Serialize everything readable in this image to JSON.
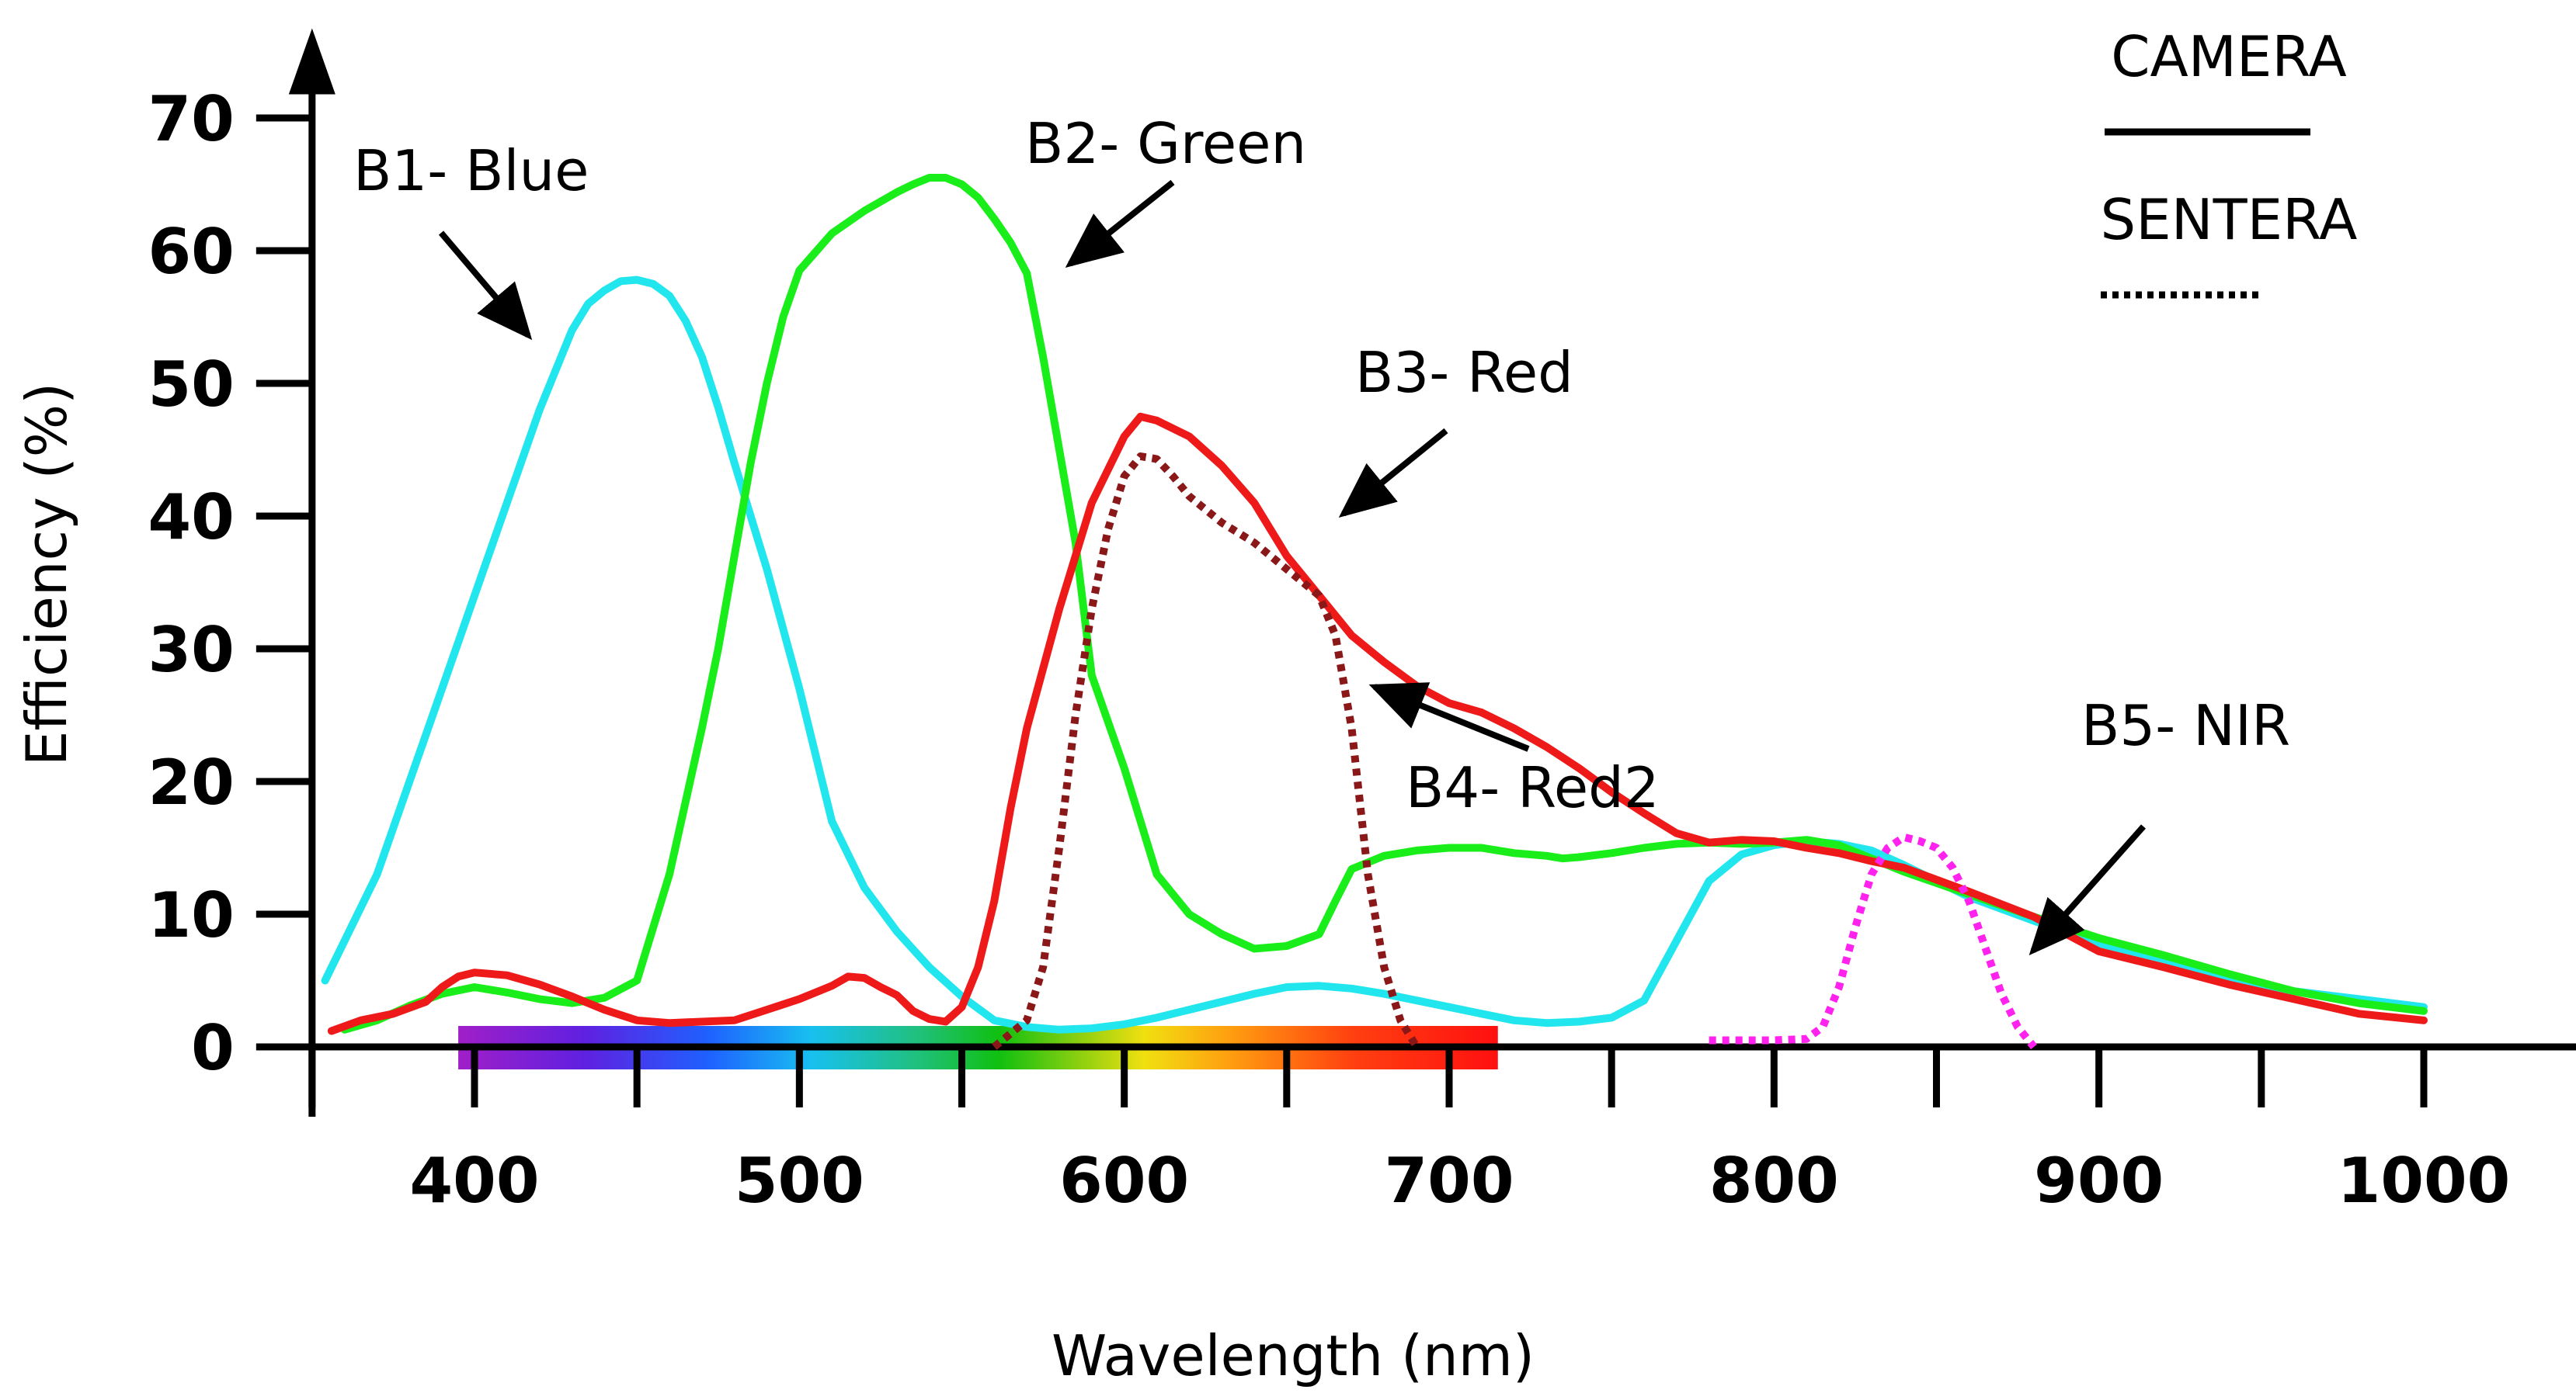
{
  "chart_data": {
    "type": "line",
    "title": "",
    "xlabel": "Wavelength (nm)",
    "ylabel": "Efficiency (%)",
    "xlim": [
      350,
      1030
    ],
    "ylim": [
      0,
      75
    ],
    "grid": false,
    "x_ticks": [
      400,
      500,
      600,
      700,
      800,
      900,
      1000
    ],
    "x_minor_ticks": [
      350,
      450,
      550,
      650,
      750,
      850,
      950
    ],
    "y_ticks": [
      0,
      10,
      20,
      30,
      40,
      50,
      60,
      70
    ],
    "spectrum_range": [
      395,
      715
    ],
    "legend": {
      "position": "top-right",
      "entries": [
        {
          "label": "CAMERA",
          "style": "solid"
        },
        {
          "label": "SENTERA",
          "style": "dotted"
        }
      ]
    },
    "series": [
      {
        "name": "B1- Blue",
        "color": "#22e6ee",
        "style": "solid",
        "x": [
          354,
          360,
          370,
          380,
          390,
          400,
          410,
          420,
          425,
          430,
          435,
          440,
          445,
          450,
          455,
          460,
          465,
          470,
          475,
          480,
          490,
          500,
          510,
          520,
          530,
          540,
          550,
          560,
          570,
          580,
          590,
          600,
          610,
          620,
          630,
          640,
          650,
          660,
          670,
          680,
          690,
          700,
          710,
          720,
          730,
          740,
          750,
          760,
          770,
          780,
          790,
          800,
          810,
          820,
          830,
          840,
          860,
          880,
          900,
          920,
          940,
          960,
          980,
          1000
        ],
        "y": [
          5,
          8,
          13,
          20,
          27,
          34,
          41,
          48,
          51,
          54,
          56,
          57,
          57.7,
          57.8,
          57.5,
          56.6,
          54.7,
          52,
          48.2,
          44,
          36,
          27,
          17,
          12,
          8.7,
          6,
          3.8,
          2,
          1.5,
          1.3,
          1.4,
          1.7,
          2.2,
          2.8,
          3.4,
          4,
          4.5,
          4.6,
          4.4,
          4.0,
          3.5,
          3.0,
          2.5,
          2.0,
          1.8,
          1.9,
          2.2,
          3.5,
          8,
          12.5,
          14.5,
          15.2,
          15.5,
          15.3,
          14.8,
          13.7,
          11.3,
          9.5,
          7.8,
          6.6,
          5.2,
          4.2,
          3.6,
          3.0
        ]
      },
      {
        "name": "B2- Green",
        "color": "#1aee1a",
        "style": "solid",
        "x": [
          360,
          370,
          380,
          390,
          400,
          410,
          420,
          430,
          440,
          450,
          460,
          470,
          475,
          480,
          485,
          490,
          495,
          500,
          510,
          520,
          530,
          535,
          540,
          545,
          550,
          555,
          560,
          565,
          570,
          575,
          580,
          585,
          590,
          600,
          610,
          620,
          630,
          640,
          650,
          660,
          665,
          670,
          680,
          690,
          700,
          710,
          720,
          730,
          735,
          740,
          750,
          760,
          770,
          780,
          790,
          800,
          810,
          820,
          830,
          840,
          860,
          880,
          900,
          920,
          940,
          960,
          980,
          1000
        ],
        "y": [
          1.3,
          2,
          3.1,
          4,
          4.5,
          4.1,
          3.6,
          3.3,
          3.7,
          5,
          13,
          24,
          30,
          37,
          44,
          50,
          55,
          58.5,
          61.3,
          63,
          64.4,
          65,
          65.5,
          65.5,
          65,
          64,
          62.4,
          60.6,
          58.3,
          52,
          45,
          38,
          28,
          21,
          13,
          10,
          8.5,
          7.4,
          7.6,
          8.5,
          11,
          13.4,
          14.4,
          14.8,
          15,
          15,
          14.6,
          14.4,
          14.2,
          14.3,
          14.6,
          15.0,
          15.3,
          15.4,
          15.3,
          15.4,
          15.6,
          15.2,
          14.2,
          13.2,
          11.5,
          9.8,
          8.2,
          6.9,
          5.5,
          4.2,
          3.3,
          2.7
        ]
      },
      {
        "name": "B3- Red",
        "color": "#ee1a1a",
        "style": "solid",
        "x": [
          356,
          365,
          375,
          385,
          390,
          395,
          400,
          410,
          420,
          430,
          440,
          450,
          460,
          470,
          480,
          490,
          500,
          510,
          515,
          520,
          525,
          530,
          535,
          540,
          545,
          550,
          555,
          560,
          565,
          570,
          580,
          590,
          600,
          605,
          610,
          620,
          630,
          640,
          650,
          660,
          670,
          680,
          690,
          700,
          710,
          720,
          730,
          740,
          750,
          760,
          770,
          780,
          790,
          800,
          810,
          820,
          830,
          840,
          860,
          880,
          900,
          920,
          940,
          960,
          980,
          1000
        ],
        "y": [
          1.2,
          2,
          2.5,
          3.4,
          4.5,
          5.3,
          5.6,
          5.4,
          4.7,
          3.8,
          2.8,
          2.0,
          1.8,
          1.9,
          2.0,
          2.8,
          3.6,
          4.6,
          5.3,
          5.2,
          4.5,
          3.9,
          2.7,
          2.1,
          1.9,
          3.0,
          6,
          11,
          18,
          24,
          33,
          41,
          46,
          47.5,
          47.2,
          46,
          43.8,
          41,
          37,
          34,
          31,
          29,
          27.2,
          25.9,
          25.2,
          24,
          22.6,
          21,
          19.2,
          17.6,
          16.1,
          15.4,
          15.6,
          15.5,
          15.0,
          14.6,
          14.0,
          13.5,
          11.7,
          9.8,
          7.2,
          6,
          4.7,
          3.6,
          2.5,
          2.0
        ]
      },
      {
        "name": "B4- Red2",
        "color": "#8b1818",
        "style": "dotted",
        "x": [
          560,
          570,
          575,
          580,
          585,
          590,
          595,
          600,
          605,
          610,
          615,
          620,
          630,
          640,
          650,
          655,
          660,
          665,
          670,
          675,
          680,
          685,
          690
        ],
        "y": [
          0,
          2,
          6,
          15,
          25,
          33,
          39,
          43,
          44.5,
          44.3,
          43,
          41.5,
          39.5,
          38,
          36,
          35,
          34,
          31,
          24,
          13,
          6,
          2,
          0
        ]
      },
      {
        "name": "B5- NIR",
        "color": "#ff22ee",
        "style": "dotted",
        "x": [
          780,
          790,
          800,
          810,
          815,
          820,
          825,
          830,
          835,
          840,
          845,
          850,
          855,
          860,
          865,
          870,
          875,
          880
        ],
        "y": [
          0.5,
          0.5,
          0.5,
          0.6,
          1.5,
          4.5,
          9,
          13,
          15,
          15.8,
          15.5,
          15,
          13.5,
          11,
          7.5,
          4,
          1.5,
          0
        ]
      }
    ],
    "annotations": [
      {
        "text": "B1- Blue",
        "points_to_series": "B1- Blue"
      },
      {
        "text": "B2- Green",
        "points_to_series": "B2- Green"
      },
      {
        "text": "B3- Red",
        "points_to_series": "B3- Red"
      },
      {
        "text": "B4- Red2",
        "points_to_series": "B4- Red2"
      },
      {
        "text": "B5- NIR",
        "points_to_series": "B5- NIR"
      }
    ]
  }
}
